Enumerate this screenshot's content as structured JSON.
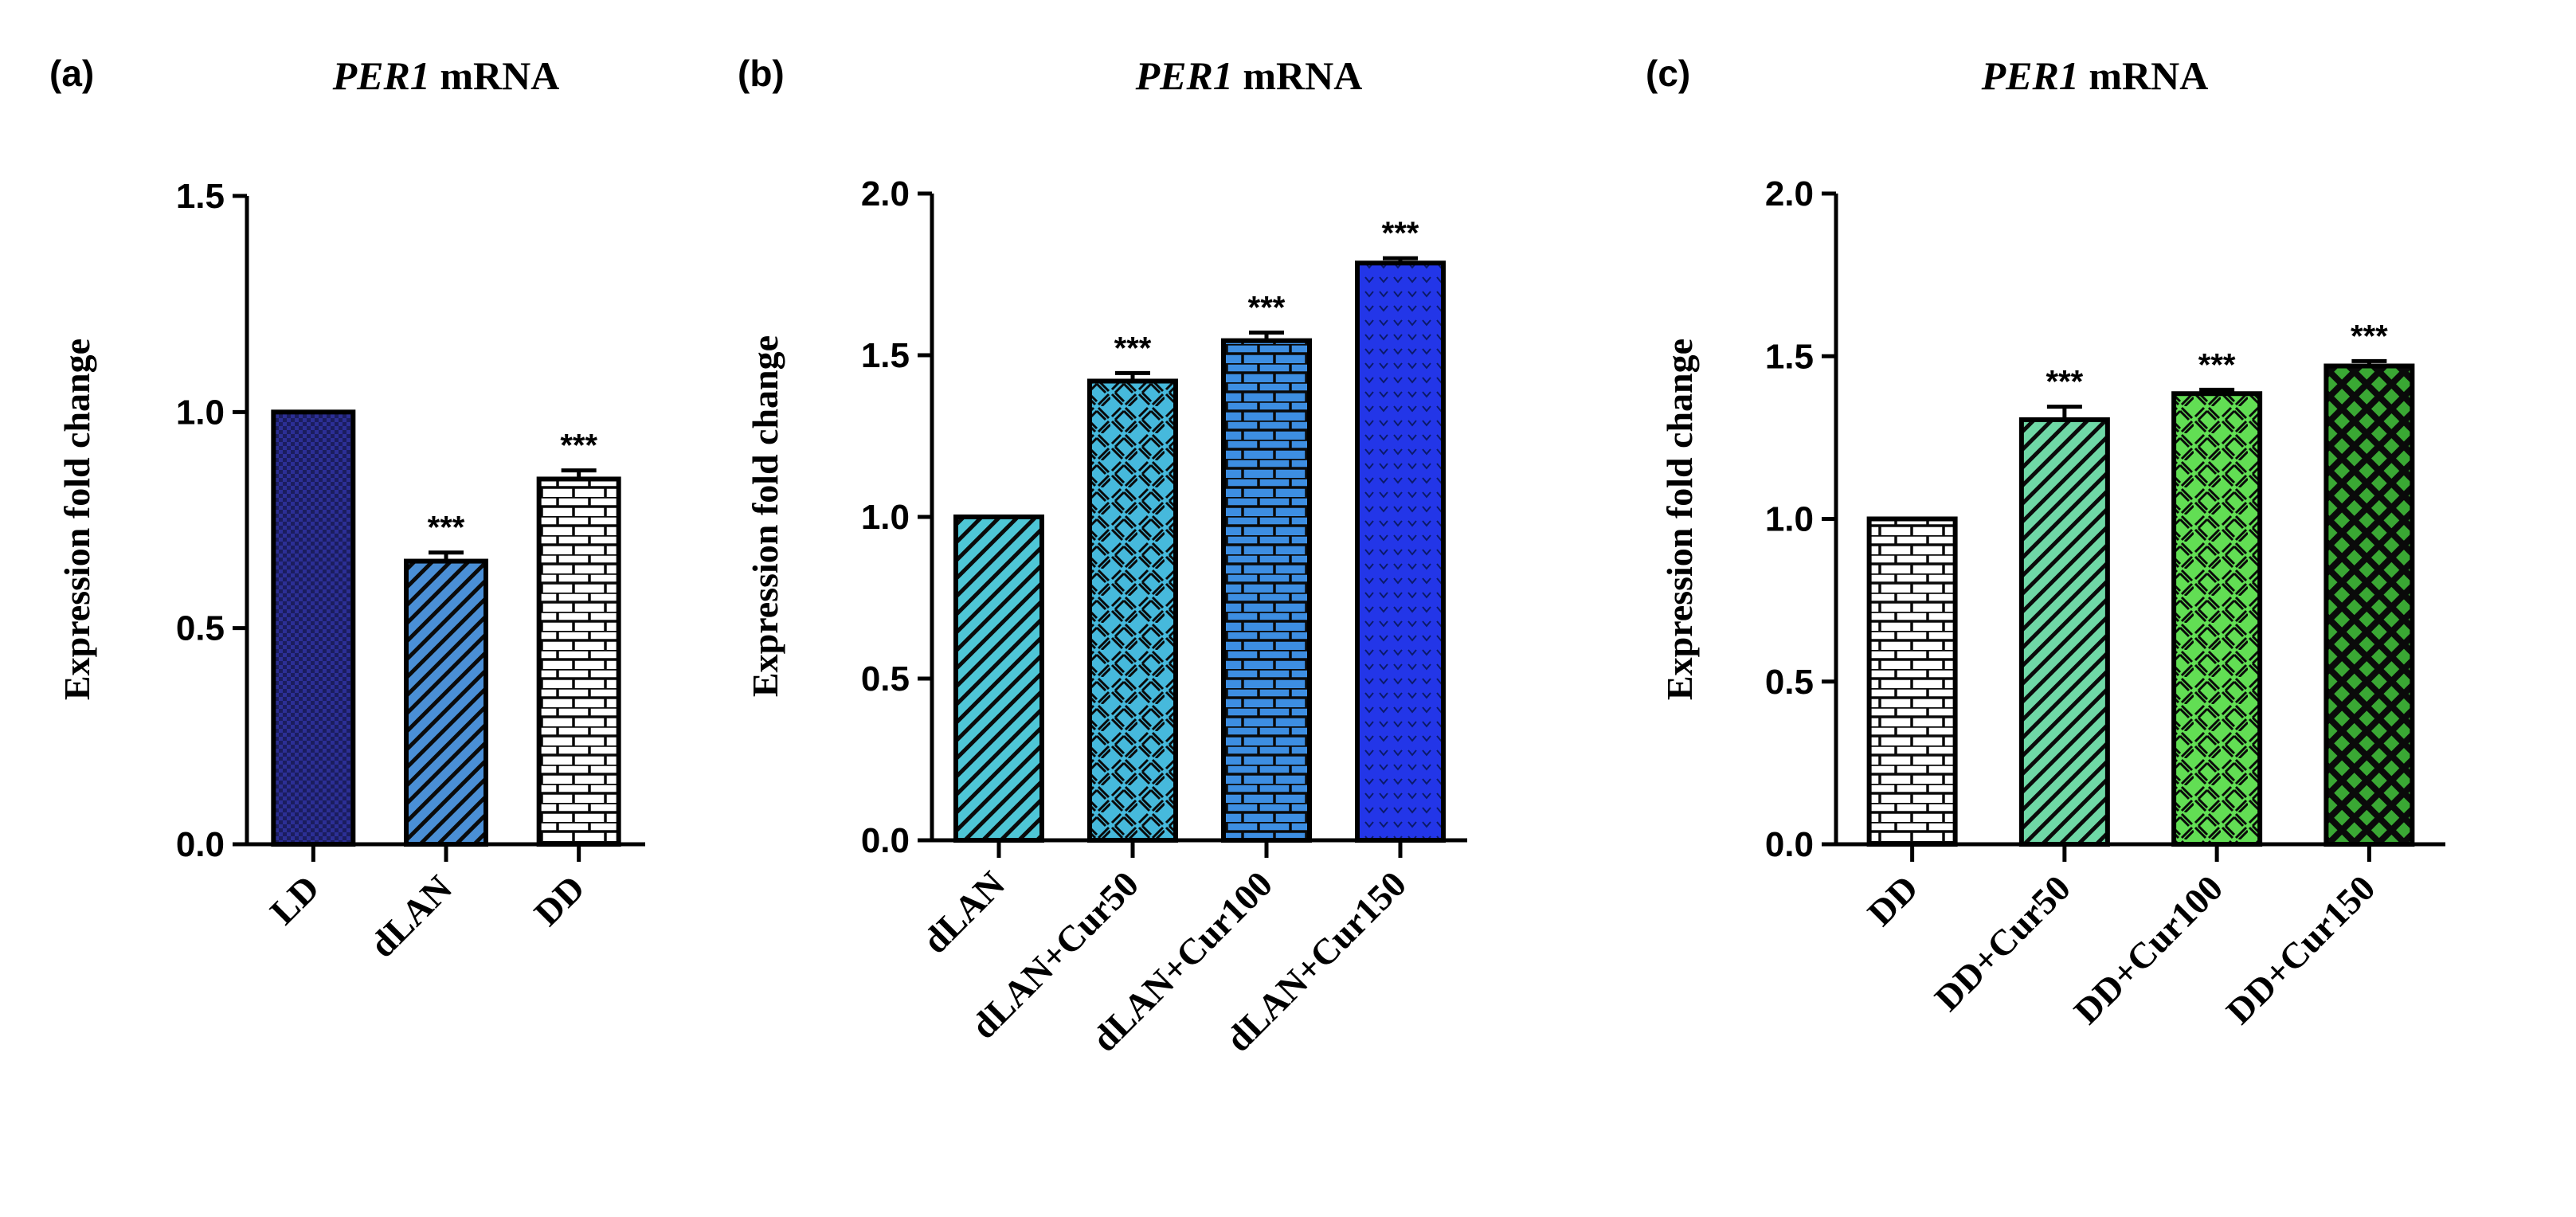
{
  "chart_data": [
    {
      "type": "bar",
      "panel": "(a)",
      "title_gene": "PER1",
      "title_suffix": " mRNA",
      "ylabel": "Expression fold change",
      "xlabel": "",
      "ylim": [
        0,
        1.5
      ],
      "yticks": [
        "0.0",
        "0.5",
        "1.0",
        "1.5"
      ],
      "categories": [
        "LD",
        "dLAN",
        "DD"
      ],
      "values": [
        1.0,
        0.655,
        0.845
      ],
      "errors": [
        0,
        0.02,
        0.02
      ],
      "significance": [
        "",
        "***",
        "***"
      ],
      "colors": [
        "#2c2f96",
        "#4a8fd6",
        "#ffffff"
      ],
      "patterns": [
        "checker",
        "diagonal",
        "brick"
      ]
    },
    {
      "type": "bar",
      "panel": "(b)",
      "title_gene": "PER1",
      "title_suffix": " mRNA",
      "ylabel": "Expression fold change",
      "xlabel": "",
      "ylim": [
        0,
        2.0
      ],
      "yticks": [
        "0.0",
        "0.5",
        "1.0",
        "1.5",
        "2.0"
      ],
      "categories": [
        "dLAN",
        "dLAN+Cur50",
        "dLAN+Cur100",
        "dLAN+Cur150"
      ],
      "values": [
        1.0,
        1.42,
        1.545,
        1.785
      ],
      "errors": [
        0,
        0.025,
        0.025,
        0.015
      ],
      "significance": [
        "",
        "***",
        "***",
        "***"
      ],
      "colors": [
        "#4ec6d6",
        "#46b9dc",
        "#3d8ee2",
        "#2336e8"
      ],
      "patterns": [
        "diagonal",
        "parquet",
        "brick",
        "dots"
      ]
    },
    {
      "type": "bar",
      "panel": "(c)",
      "title_gene": "PER1",
      "title_suffix": " mRNA",
      "ylabel": "Expression fold change",
      "xlabel": "",
      "ylim": [
        0,
        2.0
      ],
      "yticks": [
        "0.0",
        "0.5",
        "1.0",
        "1.5",
        "2.0"
      ],
      "categories": [
        "DD",
        "DD+Cur50",
        "DD+Cur100",
        "DD+Cur150"
      ],
      "values": [
        1.0,
        1.305,
        1.385,
        1.47
      ],
      "errors": [
        0,
        0.04,
        0.012,
        0.015
      ],
      "significance": [
        "",
        "***",
        "***",
        "***"
      ],
      "colors": [
        "#ffffff",
        "#6fd8a6",
        "#62de54",
        "#3aa834"
      ],
      "patterns": [
        "brick",
        "diagonal",
        "parquet",
        "lattice"
      ]
    }
  ]
}
